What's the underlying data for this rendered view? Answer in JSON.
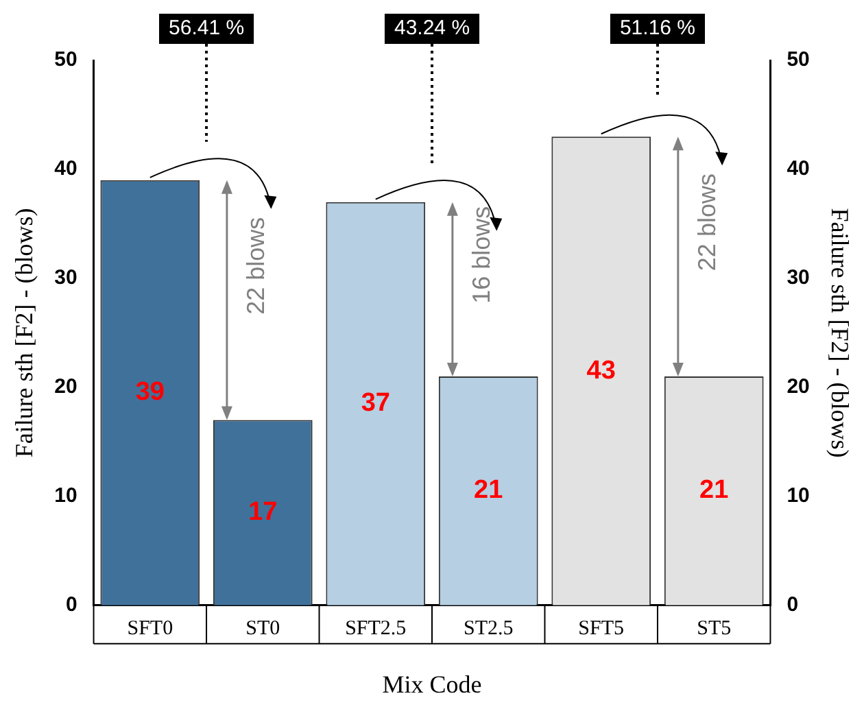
{
  "chart_data": {
    "type": "bar",
    "xlabel": "Mix Code",
    "ylabel": "Failure sth [F2] - (blows)",
    "y2label": "Failure sth [F2] - (blows)",
    "categories": [
      "SFT0",
      "ST0",
      "SFT2.5",
      "ST2.5",
      "SFT5",
      "ST5"
    ],
    "values": [
      39,
      17,
      37,
      21,
      43,
      21
    ],
    "colors": [
      "#40719a",
      "#40719a",
      "#b6cfe2",
      "#b6cfe2",
      "#e2e2e2",
      "#e2e2e2"
    ],
    "ylim": [
      0,
      50
    ],
    "yticks": [
      0,
      10,
      20,
      30,
      40,
      50
    ],
    "y2lim": [
      0,
      50
    ],
    "y2ticks": [
      0,
      10,
      20,
      30,
      40,
      50
    ],
    "grid": false,
    "legend": false,
    "data_labels": true,
    "annotations": [
      "56.41 %",
      "43.24 %",
      "51.16 %",
      "22 blows",
      "16 blows",
      "22 blows"
    ]
  }
}
